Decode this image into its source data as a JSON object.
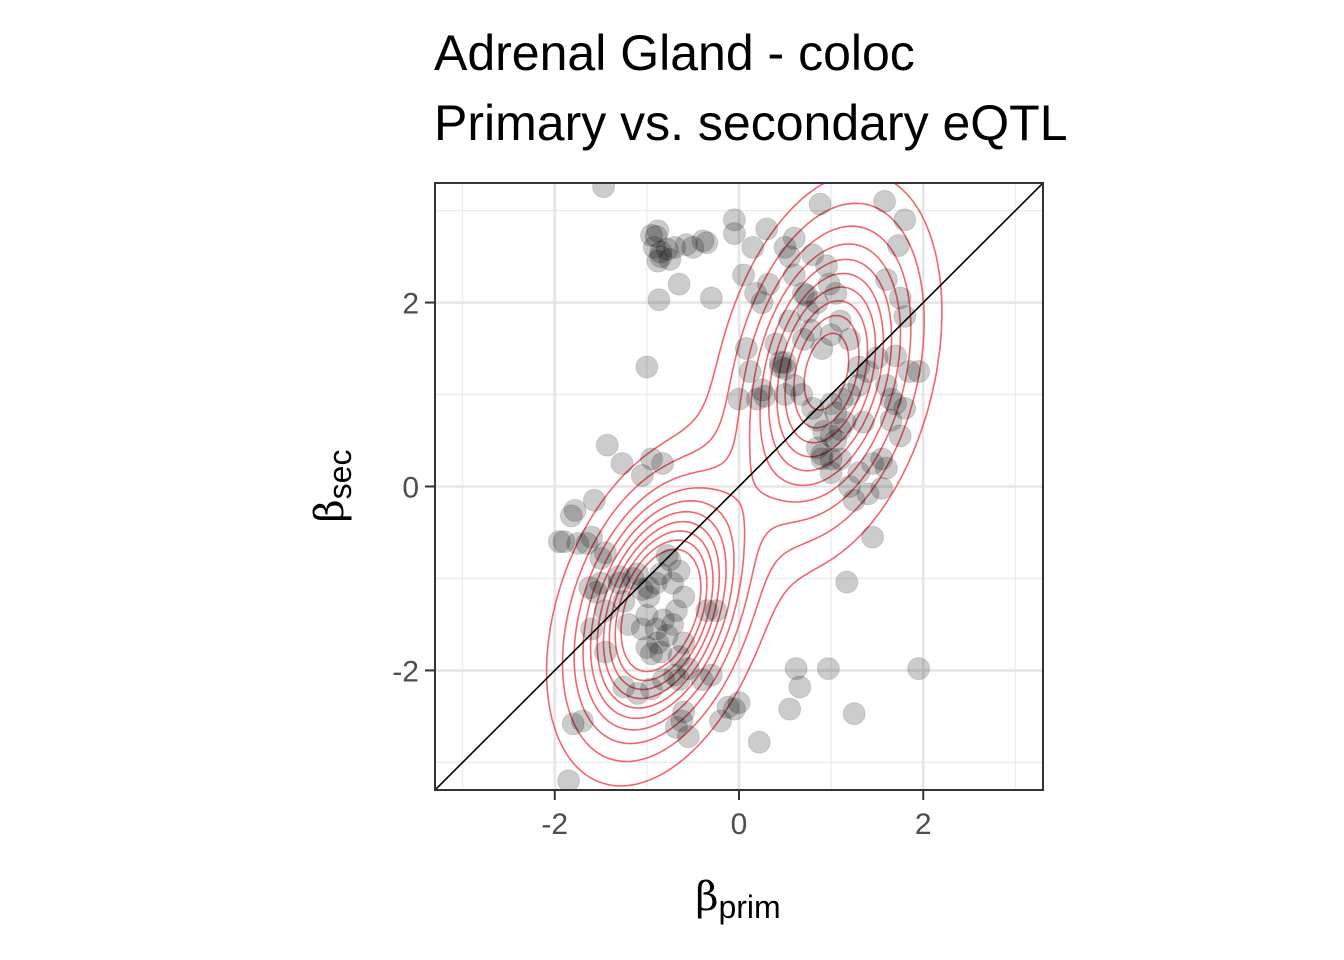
{
  "chart_data": {
    "type": "scatter",
    "title": "Adrenal Gland - coloc",
    "subtitle": "Primary vs. secondary eQTL",
    "xlabel": {
      "symbol": "β",
      "subscript": "prim"
    },
    "ylabel": {
      "symbol": "β",
      "subscript": "sec"
    },
    "xlim": [
      -3.3,
      3.3
    ],
    "ylim": [
      -3.3,
      3.3
    ],
    "x_ticks": [
      -2,
      0,
      2
    ],
    "y_ticks": [
      -2,
      0,
      2
    ],
    "x_tick_labels": [
      "-2",
      "0",
      "2"
    ],
    "y_tick_labels": [
      "-2",
      "0",
      "2"
    ],
    "grid": true,
    "reference_line": "y = x",
    "point_color": "#000000",
    "point_opacity": 0.2,
    "contour_color": "#f0545c",
    "series": [
      {
        "values": [
          [
            -1.47,
            3.26
          ],
          [
            -0.95,
            2.73
          ],
          [
            -0.92,
            2.6
          ],
          [
            -0.85,
            2.55
          ],
          [
            -0.7,
            2.6
          ],
          [
            -0.57,
            2.63
          ],
          [
            -0.35,
            2.65
          ],
          [
            -0.39,
            2.67
          ],
          [
            -0.75,
            2.47
          ],
          [
            -0.85,
            2.5
          ],
          [
            -0.88,
            2.78
          ],
          [
            -0.9,
            2.72
          ],
          [
            -0.78,
            2.58
          ],
          [
            -0.5,
            2.6
          ],
          [
            -0.88,
            2.45
          ],
          [
            -0.65,
            2.2
          ],
          [
            -0.3,
            2.05
          ],
          [
            -1.0,
            1.3
          ],
          [
            -0.87,
            2.03
          ],
          [
            -0.05,
            2.9
          ],
          [
            0.15,
            2.6
          ],
          [
            0.18,
            2.1
          ],
          [
            0.25,
            2.0
          ],
          [
            0.32,
            2.2
          ],
          [
            0.5,
            2.6
          ],
          [
            0.55,
            2.5
          ],
          [
            0.6,
            2.3
          ],
          [
            0.7,
            2.1
          ],
          [
            0.75,
            1.9
          ],
          [
            0.85,
            2.0
          ],
          [
            0.95,
            2.4
          ],
          [
            0.98,
            2.2
          ],
          [
            1.05,
            2.1
          ],
          [
            1.1,
            1.8
          ],
          [
            1.2,
            1.6
          ],
          [
            1.0,
            1.65
          ],
          [
            0.9,
            1.5
          ],
          [
            0.78,
            1.7
          ],
          [
            0.7,
            1.6
          ],
          [
            0.55,
            1.8
          ],
          [
            0.4,
            1.55
          ],
          [
            0.45,
            1.3
          ],
          [
            0.5,
            1.35
          ],
          [
            0.6,
            1.1
          ],
          [
            0.68,
            1.0
          ],
          [
            0.8,
            0.85
          ],
          [
            0.92,
            0.6
          ],
          [
            1.0,
            0.55
          ],
          [
            1.05,
            0.5
          ],
          [
            1.1,
            0.62
          ],
          [
            1.15,
            0.7
          ],
          [
            1.05,
            0.8
          ],
          [
            1.0,
            0.9
          ],
          [
            1.12,
            0.95
          ],
          [
            1.2,
            1.0
          ],
          [
            1.3,
            1.1
          ],
          [
            1.4,
            1.25
          ],
          [
            1.5,
            1.4
          ],
          [
            1.6,
            1.1
          ],
          [
            1.7,
            0.9
          ],
          [
            1.8,
            0.85
          ],
          [
            1.65,
            0.72
          ],
          [
            1.55,
            0.3
          ],
          [
            1.45,
            0.25
          ],
          [
            1.3,
            0.15
          ],
          [
            1.2,
            0.0
          ],
          [
            1.0,
            0.15
          ],
          [
            0.9,
            0.3
          ],
          [
            0.85,
            0.42
          ],
          [
            1.45,
            -0.55
          ],
          [
            1.17,
            -1.04
          ],
          [
            1.25,
            -2.47
          ],
          [
            0.97,
            -1.98
          ],
          [
            0.62,
            -1.98
          ],
          [
            0.55,
            -2.42
          ],
          [
            0.66,
            -2.18
          ],
          [
            1.95,
            -1.98
          ],
          [
            0.85,
            0.72
          ],
          [
            0.73,
            2.08
          ],
          [
            0.8,
            2.52
          ],
          [
            1.75,
            2.05
          ],
          [
            1.6,
            2.25
          ],
          [
            1.73,
            2.62
          ],
          [
            1.8,
            2.9
          ],
          [
            1.58,
            3.1
          ],
          [
            0.88,
            3.07
          ],
          [
            0.6,
            2.7
          ],
          [
            0.3,
            2.8
          ],
          [
            -0.05,
            2.75
          ],
          [
            0.05,
            2.3
          ],
          [
            0.08,
            1.5
          ],
          [
            0.12,
            1.25
          ],
          [
            0.2,
            0.95
          ],
          [
            0.0,
            0.95
          ],
          [
            0.28,
            0.98
          ],
          [
            0.25,
            1.05
          ],
          [
            0.5,
            1.0
          ],
          [
            0.45,
            1.35
          ],
          [
            0.5,
            1.28
          ],
          [
            1.8,
            1.85
          ],
          [
            1.95,
            1.25
          ],
          [
            1.85,
            1.25
          ],
          [
            1.7,
            1.42
          ],
          [
            1.3,
            1.3
          ],
          [
            1.35,
            0.7
          ],
          [
            1.65,
            0.95
          ],
          [
            1.75,
            0.55
          ],
          [
            1.6,
            0.2
          ],
          [
            1.4,
            -0.08
          ],
          [
            1.25,
            -0.15
          ],
          [
            1.55,
            -0.02
          ],
          [
            1.1,
            0.3
          ],
          [
            1.0,
            0.3
          ],
          [
            0.9,
            0.35
          ],
          [
            -1.43,
            0.45
          ],
          [
            -1.27,
            0.25
          ],
          [
            -1.05,
            0.12
          ],
          [
            -0.95,
            0.3
          ],
          [
            -0.83,
            0.25
          ],
          [
            -1.57,
            -0.15
          ],
          [
            -1.78,
            -0.26
          ],
          [
            -1.82,
            -0.32
          ],
          [
            -1.95,
            -0.6
          ],
          [
            -1.6,
            -0.55
          ],
          [
            -1.65,
            -0.62
          ],
          [
            -1.5,
            -1.05
          ],
          [
            -1.55,
            -1.15
          ],
          [
            -1.45,
            -1.35
          ],
          [
            -1.3,
            -1.05
          ],
          [
            -1.25,
            -1.25
          ],
          [
            -1.15,
            -1.0
          ],
          [
            -1.1,
            -0.95
          ],
          [
            -1.05,
            -1.12
          ],
          [
            -0.98,
            -1.1
          ],
          [
            -0.9,
            -1.05
          ],
          [
            -0.85,
            -0.95
          ],
          [
            -0.78,
            -0.75
          ],
          [
            -0.75,
            -0.8
          ],
          [
            -0.72,
            -1.05
          ],
          [
            -0.65,
            -0.92
          ],
          [
            -0.6,
            -1.2
          ],
          [
            -0.68,
            -1.35
          ],
          [
            -0.82,
            -1.45
          ],
          [
            -0.9,
            -1.55
          ],
          [
            -0.88,
            -1.7
          ],
          [
            -1.0,
            -1.75
          ],
          [
            -0.95,
            -1.82
          ],
          [
            -0.85,
            -1.8
          ],
          [
            -0.6,
            -1.7
          ],
          [
            -0.65,
            -1.85
          ],
          [
            -0.55,
            -1.98
          ],
          [
            -0.7,
            -2.05
          ],
          [
            -0.82,
            -2.1
          ],
          [
            -0.95,
            -2.2
          ],
          [
            -1.1,
            -2.25
          ],
          [
            -1.25,
            -2.18
          ],
          [
            -1.45,
            -1.8
          ],
          [
            -1.6,
            -1.55
          ],
          [
            -1.62,
            -1.1
          ],
          [
            -1.5,
            -0.78
          ],
          [
            -1.3,
            -0.98
          ],
          [
            -1.2,
            -1.5
          ],
          [
            -1.05,
            -1.55
          ],
          [
            -1.0,
            -1.4
          ],
          [
            -0.72,
            -1.5
          ],
          [
            -0.78,
            -1.62
          ],
          [
            -0.65,
            -2.1
          ],
          [
            -0.6,
            -2.45
          ],
          [
            -0.62,
            -2.55
          ],
          [
            -0.68,
            -2.62
          ],
          [
            -0.55,
            -2.72
          ],
          [
            -0.2,
            -2.55
          ],
          [
            -0.12,
            -2.4
          ],
          [
            -0.05,
            -2.42
          ],
          [
            0.0,
            -2.35
          ],
          [
            0.22,
            -2.78
          ],
          [
            -0.35,
            -1.35
          ],
          [
            -0.25,
            -1.35
          ],
          [
            -0.4,
            -2.1
          ],
          [
            -0.3,
            -2.05
          ],
          [
            -1.8,
            -2.58
          ],
          [
            -1.7,
            -2.55
          ],
          [
            -1.85,
            -3.2
          ],
          [
            -1.9,
            -0.6
          ],
          [
            -1.75,
            -0.62
          ],
          [
            -1.45,
            -0.72
          ],
          [
            -0.98,
            -1.2
          ]
        ]
      }
    ]
  }
}
